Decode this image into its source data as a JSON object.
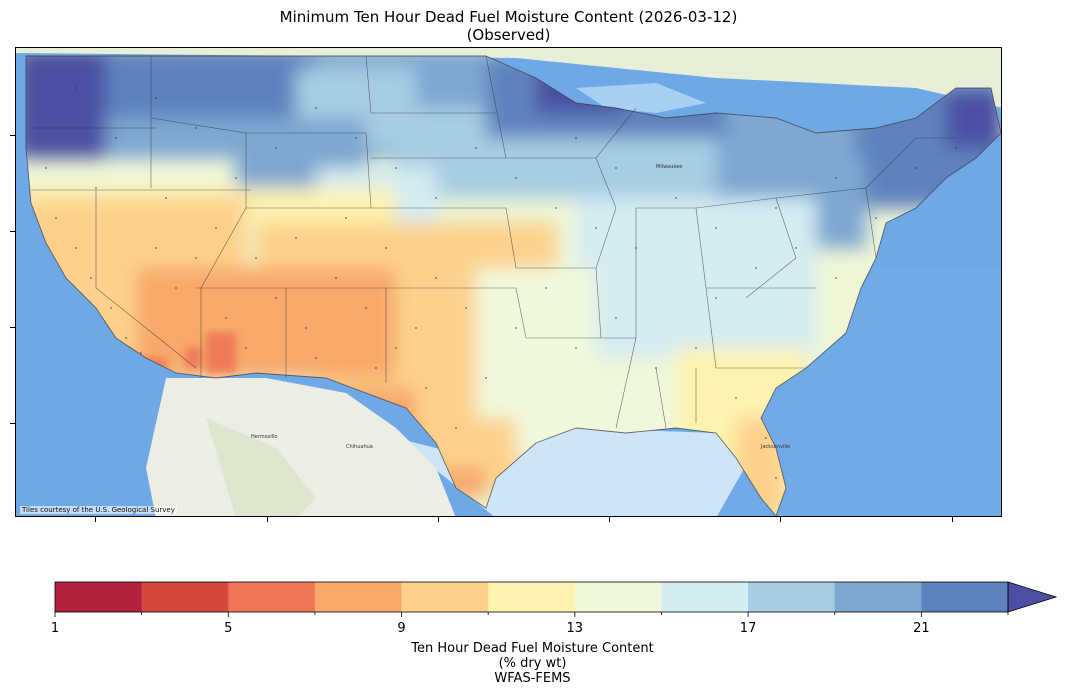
{
  "title": {
    "line1": "Minimum Ten Hour Dead Fuel Moisture Content (2026-03-12)",
    "line2": "(Observed)"
  },
  "map": {
    "credit": "Tiles courtesy of the U.S. Geological Survey",
    "place_labels": [
      "Chihuahua",
      "Hermosillo",
      "Milwaukee",
      "Jacksonville"
    ]
  },
  "colorbar": {
    "min": 1,
    "max": 23,
    "extend": "max",
    "tick_labels": [
      "1",
      "5",
      "9",
      "13",
      "17",
      "21"
    ],
    "tick_values": [
      1,
      5,
      9,
      13,
      17,
      21
    ],
    "colors": [
      "#b2223e",
      "#d6473e",
      "#ee7656",
      "#f8a86a",
      "#fdd18b",
      "#fdf3b0",
      "#f0f8dc",
      "#d5ecf2",
      "#a7cde3",
      "#7ea7d1",
      "#5e82be",
      "#4c4fa2"
    ],
    "label_line1": "Ten Hour Dead Fuel Moisture Content",
    "label_line2": "(% dry wt)",
    "label_line3": "WFAS-FEMS"
  }
}
